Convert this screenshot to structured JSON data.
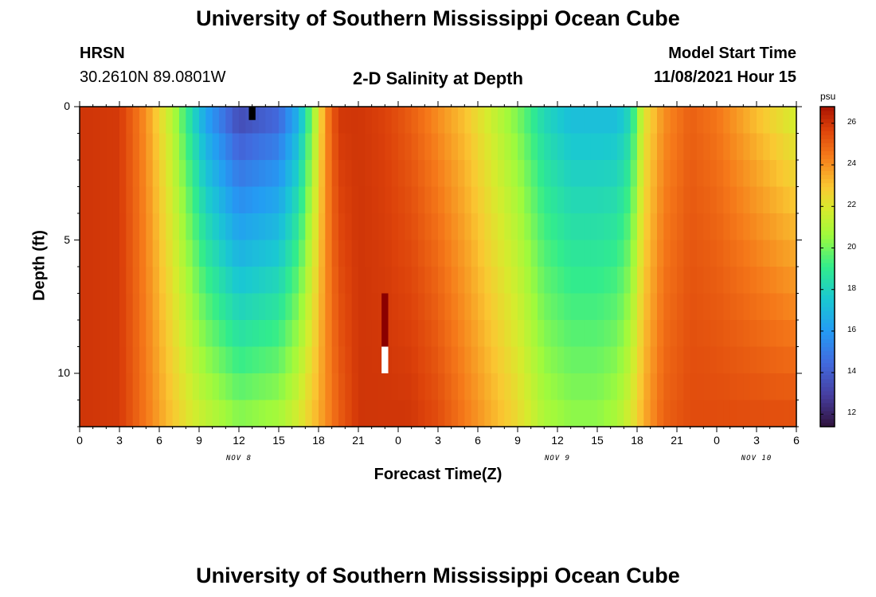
{
  "chart_data": {
    "type": "heatmap",
    "title": "University of Southern Mississippi Ocean Cube",
    "footer_title": "University of Southern Mississippi Ocean Cube",
    "station": "HRSN",
    "coords": "30.2610N  89.0801W",
    "subtitle": "2-D Salinity at Depth",
    "model_label": "Model Start Time",
    "model_time": "11/08/2021 Hour 15",
    "xlabel": "Forecast Time(Z)",
    "ylabel": "Depth (ft)",
    "x_hours_range": [
      0,
      54
    ],
    "y_range": [
      0,
      12
    ],
    "x_ticks": [
      "0",
      "3",
      "6",
      "9",
      "12",
      "15",
      "18",
      "21",
      "0",
      "3",
      "6",
      "9",
      "12",
      "15",
      "18",
      "21",
      "0",
      "3",
      "6"
    ],
    "y_ticks": [
      "0",
      "5",
      "10"
    ],
    "date_labels": [
      {
        "text": "NOV 8",
        "hour": 12
      },
      {
        "text": "NOV 9",
        "hour": 36
      },
      {
        "text": "NOV 10",
        "hour": 51
      }
    ],
    "colorbar": {
      "unit": "psu",
      "min": 11.4,
      "max": 26.8,
      "ticks": [
        "12",
        "14",
        "16",
        "18",
        "20",
        "22",
        "24",
        "26"
      ]
    },
    "salinity_keyframes_psu": {
      "hours": [
        0,
        3,
        5,
        7,
        8.5,
        9.5,
        12,
        15,
        16.5,
        17.5,
        18.5,
        19.5,
        21,
        23,
        25,
        27,
        29,
        31,
        33,
        35,
        37,
        39,
        40.5,
        41.5,
        42.5,
        44,
        46,
        48,
        51,
        54
      ],
      "surface": [
        26,
        25.9,
        24,
        21,
        18,
        16,
        13,
        14,
        16.5,
        20,
        24,
        26,
        26,
        25.7,
        25,
        24,
        23,
        21.5,
        20,
        18,
        17,
        17,
        17,
        18,
        22,
        24,
        25,
        24.5,
        23,
        21.5
      ],
      "bottom": [
        26,
        25.9,
        24.5,
        23,
        22,
        21.5,
        20.5,
        21,
        22,
        23,
        24,
        25,
        26,
        26,
        26,
        25.5,
        24.5,
        23.5,
        22.5,
        21,
        20.5,
        20.5,
        21,
        22,
        23.5,
        25,
        25.5,
        25.5,
        25.5,
        25.5
      ]
    },
    "anomalies": [
      {
        "hour": 13,
        "depth": 0,
        "psu": 11.4,
        "note": "black cell"
      },
      {
        "hour": 23,
        "depth": 9,
        "psu": "white",
        "note": "white cell"
      },
      {
        "hour": 23,
        "depth": 7,
        "psu": 26.8,
        "note": "deep red cells"
      }
    ]
  }
}
